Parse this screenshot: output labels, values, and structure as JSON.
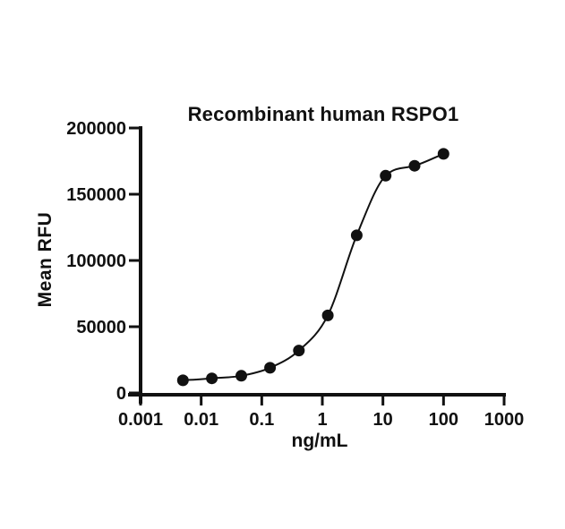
{
  "chart_data": {
    "type": "scatter",
    "title": "Recombinant human RSPO1",
    "xlabel": "ng/mL",
    "ylabel": "Mean RFU",
    "x_scale": "log10",
    "y_scale": "linear",
    "xlim": [
      0.001,
      1000
    ],
    "ylim": [
      0,
      200000
    ],
    "grid": false,
    "legend": "none",
    "x_ticks": [
      0.001,
      0.01,
      0.1,
      1,
      10,
      100,
      1000
    ],
    "x_tick_labels": [
      "0.001",
      "0.01",
      "0.1",
      "1",
      "10",
      "100",
      "1000"
    ],
    "y_ticks": [
      0,
      50000,
      100000,
      150000,
      200000
    ],
    "y_tick_labels": [
      "0",
      "50000",
      "100000",
      "150000",
      "200000"
    ],
    "series": [
      {
        "name": "Recombinant human RSPO1",
        "marker": "filled-black-circle",
        "color": "#111111",
        "fit_curve": "sigmoidal-4PL",
        "x": [
          0.005,
          0.015,
          0.046,
          0.137,
          0.41,
          1.23,
          3.7,
          11.1,
          33.3,
          100
        ],
        "y": [
          9500,
          11000,
          13000,
          19000,
          32000,
          58500,
          119000,
          164000,
          171500,
          180500
        ]
      }
    ]
  }
}
